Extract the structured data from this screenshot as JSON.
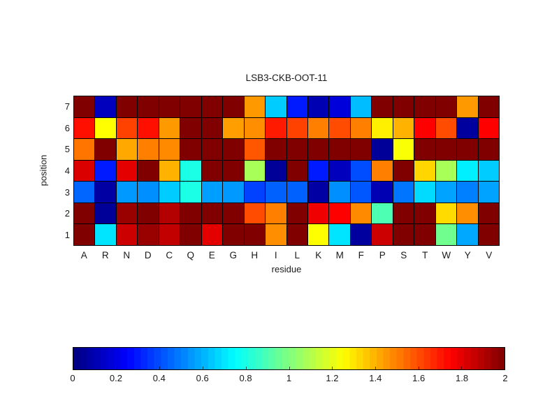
{
  "chart_data": {
    "type": "heatmap",
    "title": "LSB3-CKB-OOT-11",
    "xlabel": "residue",
    "ylabel": "position",
    "columns": [
      "A",
      "R",
      "N",
      "D",
      "C",
      "Q",
      "E",
      "G",
      "H",
      "I",
      "L",
      "K",
      "M",
      "F",
      "P",
      "S",
      "T",
      "W",
      "Y",
      "V"
    ],
    "rows": [
      "7",
      "6",
      "5",
      "4",
      "3",
      "2",
      "1"
    ],
    "values": [
      [
        2.0,
        0.12,
        2.0,
        2.0,
        2.0,
        2.0,
        2.0,
        2.0,
        1.45,
        0.65,
        0.3,
        0.1,
        0.18,
        0.62,
        2.0,
        2.0,
        2.0,
        2.0,
        1.45,
        2.0
      ],
      [
        1.72,
        1.25,
        1.62,
        1.72,
        1.45,
        2.0,
        2.0,
        1.44,
        1.47,
        1.7,
        1.62,
        1.5,
        1.6,
        1.5,
        1.28,
        1.4,
        1.75,
        1.6,
        0.06,
        1.75
      ],
      [
        1.52,
        2.0,
        1.42,
        1.5,
        1.48,
        2.0,
        2.0,
        2.0,
        1.58,
        2.0,
        2.0,
        2.0,
        2.0,
        2.0,
        0.05,
        1.24,
        2.0,
        2.0,
        2.0,
        2.0
      ],
      [
        1.82,
        0.3,
        1.8,
        2.0,
        1.4,
        0.8,
        2.0,
        2.0,
        1.08,
        0.05,
        2.0,
        0.3,
        0.12,
        0.4,
        1.5,
        2.0,
        1.33,
        1.08,
        0.72,
        0.65
      ],
      [
        0.45,
        0.07,
        0.55,
        0.53,
        0.65,
        0.8,
        0.56,
        0.55,
        0.38,
        0.44,
        0.44,
        0.07,
        0.53,
        0.42,
        0.1,
        0.48,
        0.68,
        0.57,
        0.5,
        0.57
      ],
      [
        2.0,
        0.05,
        1.95,
        2.0,
        1.9,
        2.0,
        2.0,
        2.0,
        1.6,
        1.5,
        2.0,
        1.78,
        1.75,
        1.48,
        0.9,
        2.0,
        2.0,
        1.32,
        1.47,
        2.0
      ],
      [
        2.0,
        0.7,
        1.85,
        1.95,
        1.87,
        2.0,
        1.8,
        2.0,
        2.0,
        1.47,
        2.0,
        1.25,
        0.7,
        0.06,
        1.85,
        2.0,
        2.0,
        0.97,
        0.58,
        2.0
      ]
    ],
    "colormap": "jet",
    "vmin": 0,
    "vmax": 2,
    "cell_edges": true,
    "colorbar": {
      "orientation": "horizontal",
      "position": "bottom",
      "ticks": [
        0,
        0.2,
        0.4,
        0.6,
        0.8,
        1,
        1.2,
        1.4,
        1.6,
        1.8,
        2
      ],
      "tick_labels": [
        "0",
        "0.2",
        "0.4",
        "0.6",
        "0.8",
        "1",
        "1.2",
        "1.4",
        "1.6",
        "1.8",
        "2"
      ]
    }
  }
}
